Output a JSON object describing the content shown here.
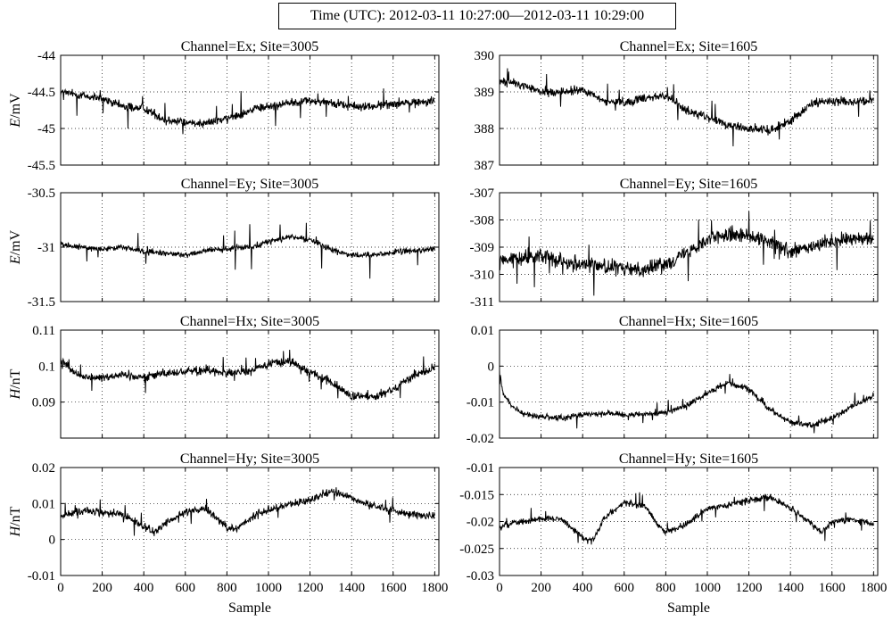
{
  "header": {
    "time_range": "Time (UTC): 2012-03-11 10:27:00—2012-03-11 10:29:00"
  },
  "chart_data": [
    {
      "type": "line",
      "title": "Channel=Ex; Site=3005",
      "ylabel": "E/mV",
      "xlabel": "",
      "xlim": [
        0,
        1820
      ],
      "ylim": [
        -45.5,
        -44
      ],
      "yticks": [
        "-44",
        "-44.5",
        "-45",
        "-45.5"
      ],
      "ytick_values": [
        -44,
        -44.5,
        -45,
        -45.5
      ],
      "grid": true,
      "series": [
        {
          "color": "#000000",
          "noise": 0.09,
          "spike": 0.3,
          "x": [
            0,
            100,
            200,
            300,
            400,
            500,
            600,
            700,
            800,
            900,
            1000,
            1100,
            1200,
            1300,
            1400,
            1500,
            1600,
            1700,
            1800
          ],
          "y": [
            -44.5,
            -44.55,
            -44.6,
            -44.7,
            -44.72,
            -44.88,
            -44.92,
            -44.92,
            -44.87,
            -44.76,
            -44.7,
            -44.65,
            -44.62,
            -44.64,
            -44.7,
            -44.7,
            -44.66,
            -44.64,
            -44.62
          ]
        }
      ]
    },
    {
      "type": "line",
      "title": "Channel=Ex; Site=1605",
      "ylabel": "",
      "xlabel": "",
      "xlim": [
        0,
        1820
      ],
      "ylim": [
        387,
        390
      ],
      "yticks": [
        "390",
        "389",
        "388",
        "387"
      ],
      "ytick_values": [
        390,
        389,
        388,
        387
      ],
      "grid": true,
      "series": [
        {
          "color": "#000000",
          "noise": 0.18,
          "spike": 0.5,
          "x": [
            0,
            100,
            200,
            300,
            400,
            500,
            600,
            700,
            800,
            900,
            1000,
            1100,
            1200,
            1300,
            1400,
            1500,
            1600,
            1700,
            1800
          ],
          "y": [
            389.3,
            389.2,
            389.0,
            389.0,
            389.05,
            388.75,
            388.7,
            388.85,
            388.9,
            388.5,
            388.3,
            388.1,
            388.0,
            387.95,
            388.2,
            388.7,
            388.75,
            388.75,
            388.75
          ]
        }
      ]
    },
    {
      "type": "line",
      "title": "Channel=Ey; Site=3005",
      "ylabel": "E/mV",
      "xlabel": "",
      "xlim": [
        0,
        1820
      ],
      "ylim": [
        -31.5,
        -30.5
      ],
      "yticks": [
        "-30.5",
        "-31",
        "-31.5"
      ],
      "ytick_values": [
        -30.5,
        -31,
        -31.5
      ],
      "grid": true,
      "series": [
        {
          "color": "#000000",
          "noise": 0.04,
          "spike": 0.2,
          "x": [
            0,
            100,
            200,
            300,
            400,
            500,
            600,
            700,
            800,
            900,
            1000,
            1100,
            1200,
            1300,
            1400,
            1500,
            1600,
            1700,
            1800
          ],
          "y": [
            -30.98,
            -31.0,
            -31.02,
            -31.0,
            -31.04,
            -31.06,
            -31.07,
            -31.03,
            -31.02,
            -31.0,
            -30.95,
            -30.91,
            -30.93,
            -31.02,
            -31.08,
            -31.07,
            -31.05,
            -31.03,
            -31.02
          ]
        }
      ]
    },
    {
      "type": "line",
      "title": "Channel=Ey; Site=1605",
      "ylabel": "",
      "xlabel": "",
      "xlim": [
        0,
        1820
      ],
      "ylim": [
        -311,
        -307
      ],
      "yticks": [
        "-307",
        "-308",
        "-309",
        "-310",
        "-311"
      ],
      "ytick_values": [
        -307,
        -308,
        -309,
        -310,
        -311
      ],
      "grid": true,
      "series": [
        {
          "color": "#000000",
          "noise": 0.4,
          "spike": 1.1,
          "x": [
            0,
            100,
            200,
            300,
            400,
            500,
            600,
            700,
            800,
            900,
            1000,
            1100,
            1200,
            1300,
            1400,
            1500,
            1600,
            1700,
            1800
          ],
          "y": [
            -309.5,
            -309.4,
            -309.3,
            -309.5,
            -309.6,
            -309.7,
            -309.8,
            -309.8,
            -309.6,
            -309.2,
            -308.7,
            -308.5,
            -308.6,
            -308.8,
            -309.2,
            -309.0,
            -308.8,
            -308.7,
            -308.7
          ]
        }
      ]
    },
    {
      "type": "line",
      "title": "Channel=Hx; Site=3005",
      "ylabel": "H/nT",
      "xlabel": "",
      "xlim": [
        0,
        1820
      ],
      "ylim": [
        0.08,
        0.11
      ],
      "yticks": [
        "0.11",
        "0.1",
        "0.09"
      ],
      "ytick_values": [
        0.11,
        0.1,
        0.09
      ],
      "grid": true,
      "series": [
        {
          "color": "#000000",
          "noise": 0.0018,
          "spike": 0.004,
          "x": [
            0,
            50,
            100,
            200,
            300,
            400,
            500,
            600,
            700,
            800,
            900,
            1000,
            1100,
            1200,
            1300,
            1400,
            1500,
            1600,
            1700,
            1800
          ],
          "y": [
            0.102,
            0.099,
            0.097,
            0.097,
            0.0975,
            0.097,
            0.098,
            0.0985,
            0.099,
            0.098,
            0.0985,
            0.1005,
            0.1015,
            0.0985,
            0.0955,
            0.0915,
            0.0915,
            0.0935,
            0.0975,
            0.0995
          ]
        }
      ]
    },
    {
      "type": "line",
      "title": "Channel=Hx; Site=1605",
      "ylabel": "",
      "xlabel": "",
      "xlim": [
        0,
        1820
      ],
      "ylim": [
        -0.02,
        0.01
      ],
      "yticks": [
        "0.01",
        "0",
        "-0.01",
        "-0.02"
      ],
      "ytick_values": [
        0.01,
        0,
        -0.01,
        -0.02
      ],
      "grid": true,
      "series": [
        {
          "color": "#000000",
          "noise": 0.0012,
          "spike": 0.003,
          "x": [
            0,
            20,
            60,
            100,
            200,
            300,
            400,
            500,
            600,
            700,
            800,
            900,
            1000,
            1100,
            1200,
            1300,
            1400,
            1500,
            1600,
            1700,
            1800
          ],
          "y": [
            -0.002,
            -0.008,
            -0.011,
            -0.013,
            -0.014,
            -0.0145,
            -0.0135,
            -0.013,
            -0.0135,
            -0.0135,
            -0.013,
            -0.011,
            -0.0075,
            -0.0045,
            -0.0065,
            -0.012,
            -0.0155,
            -0.0165,
            -0.0145,
            -0.011,
            -0.0085
          ]
        }
      ]
    },
    {
      "type": "line",
      "title": "Channel=Hy; Site=3005",
      "ylabel": "H/nT",
      "xlabel": "Sample",
      "xlim": [
        0,
        1820
      ],
      "ylim": [
        -0.01,
        0.02
      ],
      "xticks": [
        "0",
        "200",
        "400",
        "600",
        "800",
        "1000",
        "1200",
        "1400",
        "1600",
        "1800"
      ],
      "xtick_values": [
        0,
        200,
        400,
        600,
        800,
        1000,
        1200,
        1400,
        1600,
        1800
      ],
      "yticks": [
        "0.02",
        "0.01",
        "0",
        "-0.01"
      ],
      "ytick_values": [
        0.02,
        0.01,
        0,
        -0.01
      ],
      "grid": true,
      "series": [
        {
          "color": "#000000",
          "noise": 0.0016,
          "spike": 0.004,
          "x": [
            0,
            100,
            200,
            300,
            400,
            450,
            500,
            600,
            700,
            800,
            850,
            900,
            1000,
            1100,
            1200,
            1300,
            1400,
            1500,
            1600,
            1700,
            1800
          ],
          "y": [
            0.0065,
            0.008,
            0.0075,
            0.007,
            0.0035,
            0.002,
            0.0045,
            0.0075,
            0.0085,
            0.0035,
            0.003,
            0.0055,
            0.0085,
            0.0095,
            0.011,
            0.0135,
            0.0115,
            0.0095,
            0.008,
            0.007,
            0.0065
          ]
        }
      ]
    },
    {
      "type": "line",
      "title": "Channel=Hy; Site=1605",
      "ylabel": "",
      "xlabel": "Sample",
      "xlim": [
        0,
        1820
      ],
      "ylim": [
        -0.03,
        -0.01
      ],
      "xticks": [
        "0",
        "200",
        "400",
        "600",
        "800",
        "1000",
        "1200",
        "1400",
        "1600",
        "1800"
      ],
      "xtick_values": [
        0,
        200,
        400,
        600,
        800,
        1000,
        1200,
        1400,
        1600,
        1800
      ],
      "yticks": [
        "-0.01",
        "-0.015",
        "-0.02",
        "-0.025",
        "-0.03"
      ],
      "ytick_values": [
        -0.01,
        -0.015,
        -0.02,
        -0.025,
        -0.03
      ],
      "grid": true,
      "series": [
        {
          "color": "#000000",
          "noise": 0.0009,
          "spike": 0.0025,
          "x": [
            0,
            100,
            200,
            300,
            400,
            450,
            500,
            600,
            700,
            750,
            800,
            900,
            1000,
            1100,
            1200,
            1300,
            1400,
            1500,
            1550,
            1600,
            1700,
            1800
          ],
          "y": [
            -0.021,
            -0.02,
            -0.0195,
            -0.0195,
            -0.023,
            -0.0235,
            -0.0195,
            -0.0165,
            -0.017,
            -0.02,
            -0.022,
            -0.0205,
            -0.0175,
            -0.017,
            -0.016,
            -0.0155,
            -0.0175,
            -0.0205,
            -0.022,
            -0.02,
            -0.0195,
            -0.0205
          ]
        }
      ]
    }
  ]
}
